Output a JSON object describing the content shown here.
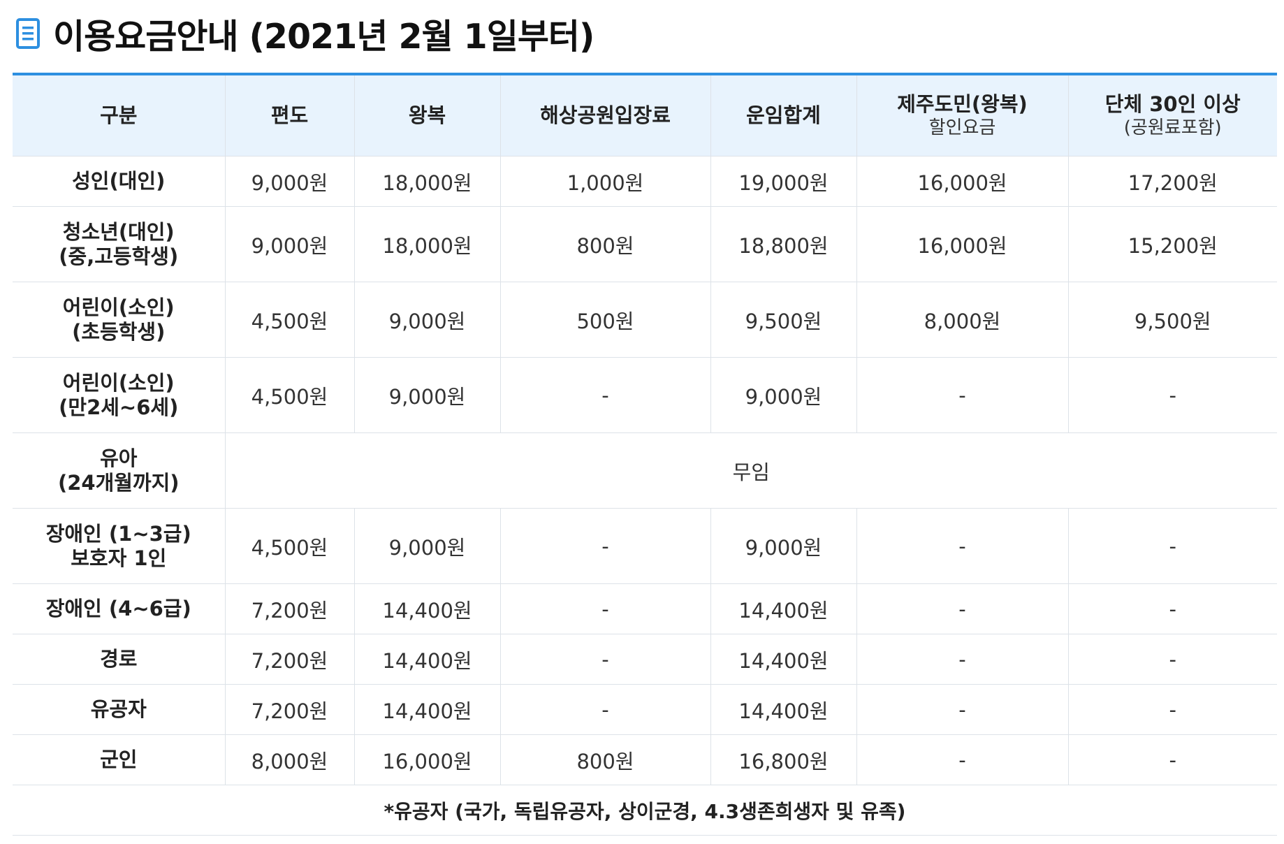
{
  "title": "이용요금안내 (2021년 2월 1일부터)",
  "colors": {
    "accent": "#2d8fe0",
    "header_bg": "#e8f3fd"
  },
  "icons": {
    "title_icon": "document-icon"
  },
  "table": {
    "columns": [
      {
        "label": "구분",
        "sub": ""
      },
      {
        "label": "편도",
        "sub": ""
      },
      {
        "label": "왕복",
        "sub": ""
      },
      {
        "label": "해상공원입장료",
        "sub": ""
      },
      {
        "label": "운임합계",
        "sub": ""
      },
      {
        "label": "제주도민(왕복)",
        "sub": "할인요금"
      },
      {
        "label": "단체 30인 이상",
        "sub": "(공원료포함)"
      }
    ],
    "rows": [
      {
        "category": [
          "성인(대인)"
        ],
        "values": [
          "9,000원",
          "18,000원",
          "1,000원",
          "19,000원",
          "16,000원",
          "17,200원"
        ]
      },
      {
        "category": [
          "청소년(대인)",
          "(중,고등학생)"
        ],
        "values": [
          "9,000원",
          "18,000원",
          "800원",
          "18,800원",
          "16,000원",
          "15,200원"
        ]
      },
      {
        "category": [
          "어린이(소인)",
          "(초등학생)"
        ],
        "values": [
          "4,500원",
          "9,000원",
          "500원",
          "9,500원",
          "8,000원",
          "9,500원"
        ]
      },
      {
        "category": [
          "어린이(소인)",
          "(만2세~6세)"
        ],
        "values": [
          "4,500원",
          "9,000원",
          "-",
          "9,000원",
          "-",
          "-"
        ]
      },
      {
        "category": [
          "유아",
          "(24개월까지)"
        ],
        "merged": "무임"
      },
      {
        "category": [
          "장애인 (1~3급)",
          "보호자 1인"
        ],
        "values": [
          "4,500원",
          "9,000원",
          "-",
          "9,000원",
          "-",
          "-"
        ]
      },
      {
        "category": [
          "장애인 (4~6급)"
        ],
        "values": [
          "7,200원",
          "14,400원",
          "-",
          "14,400원",
          "-",
          "-"
        ]
      },
      {
        "category": [
          "경로"
        ],
        "values": [
          "7,200원",
          "14,400원",
          "-",
          "14,400원",
          "-",
          "-"
        ]
      },
      {
        "category": [
          "유공자"
        ],
        "values": [
          "7,200원",
          "14,400원",
          "-",
          "14,400원",
          "-",
          "-"
        ]
      },
      {
        "category": [
          "군인"
        ],
        "values": [
          "8,000원",
          "16,000원",
          "800원",
          "16,800원",
          "-",
          "-"
        ]
      }
    ],
    "footnote": "*유공자 (국가, 독립유공자, 상이군경, 4.3생존희생자 및 유족)"
  }
}
